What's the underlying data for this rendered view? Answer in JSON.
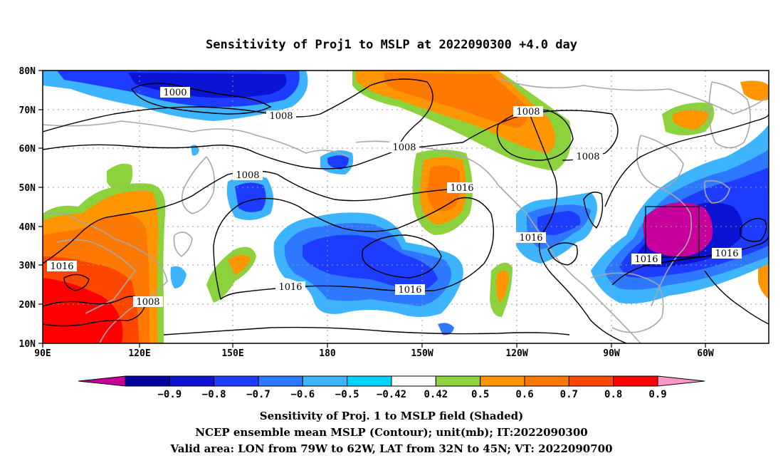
{
  "title": "Sensitivity of Proj1 to MSLP at 2022090300 +4.0 day",
  "map": {
    "lon_labels": [
      "90E",
      "120E",
      "150E",
      "180",
      "150W",
      "120W",
      "90W",
      "60W"
    ],
    "lat_labels": [
      "80N",
      "70N",
      "60N",
      "50N",
      "40N",
      "30N",
      "20N",
      "10N"
    ],
    "lon_range": [
      "90E",
      "48W"
    ],
    "lat_range": [
      "10N",
      "80N"
    ],
    "gridlines": "dotted",
    "contour_labels": [
      {
        "text": "1000"
      },
      {
        "text": "1008"
      },
      {
        "text": "1008"
      },
      {
        "text": "1008"
      },
      {
        "text": "1008"
      },
      {
        "text": "1008"
      },
      {
        "text": "1016"
      },
      {
        "text": "1016"
      },
      {
        "text": "1016"
      },
      {
        "text": "1016"
      },
      {
        "text": "1016"
      },
      {
        "text": "1016"
      },
      {
        "text": "1016"
      },
      {
        "text": "1008"
      }
    ],
    "valid_box": {
      "lon": [
        "79W",
        "62W"
      ],
      "lat": [
        "32N",
        "45N"
      ]
    }
  },
  "colorbar": {
    "labels": [
      "−0.9",
      "−0.8",
      "−0.7",
      "−0.6",
      "−0.5",
      "−0.42",
      "0.42",
      "0.5",
      "0.6",
      "0.7",
      "0.8",
      "0.9"
    ],
    "colors": [
      "#c8009b",
      "#0000a0",
      "#0a14d2",
      "#1e3cff",
      "#2d78ff",
      "#3cb4ff",
      "#00d2ff",
      "#ffffff",
      "#8cd23c",
      "#ff9600",
      "#ff7800",
      "#ff4600",
      "#ff0000",
      "#ff96c8"
    ]
  },
  "caption": {
    "line1": "Sensitivity of Proj. 1 to MSLP field (Shaded)",
    "line2": "NCEP ensemble mean MSLP (Contour); unit(mb); IT:2022090300",
    "line3": "Valid area: LON from 79W to 62W, LAT from 32N to 45N; VT: 2022090700"
  }
}
